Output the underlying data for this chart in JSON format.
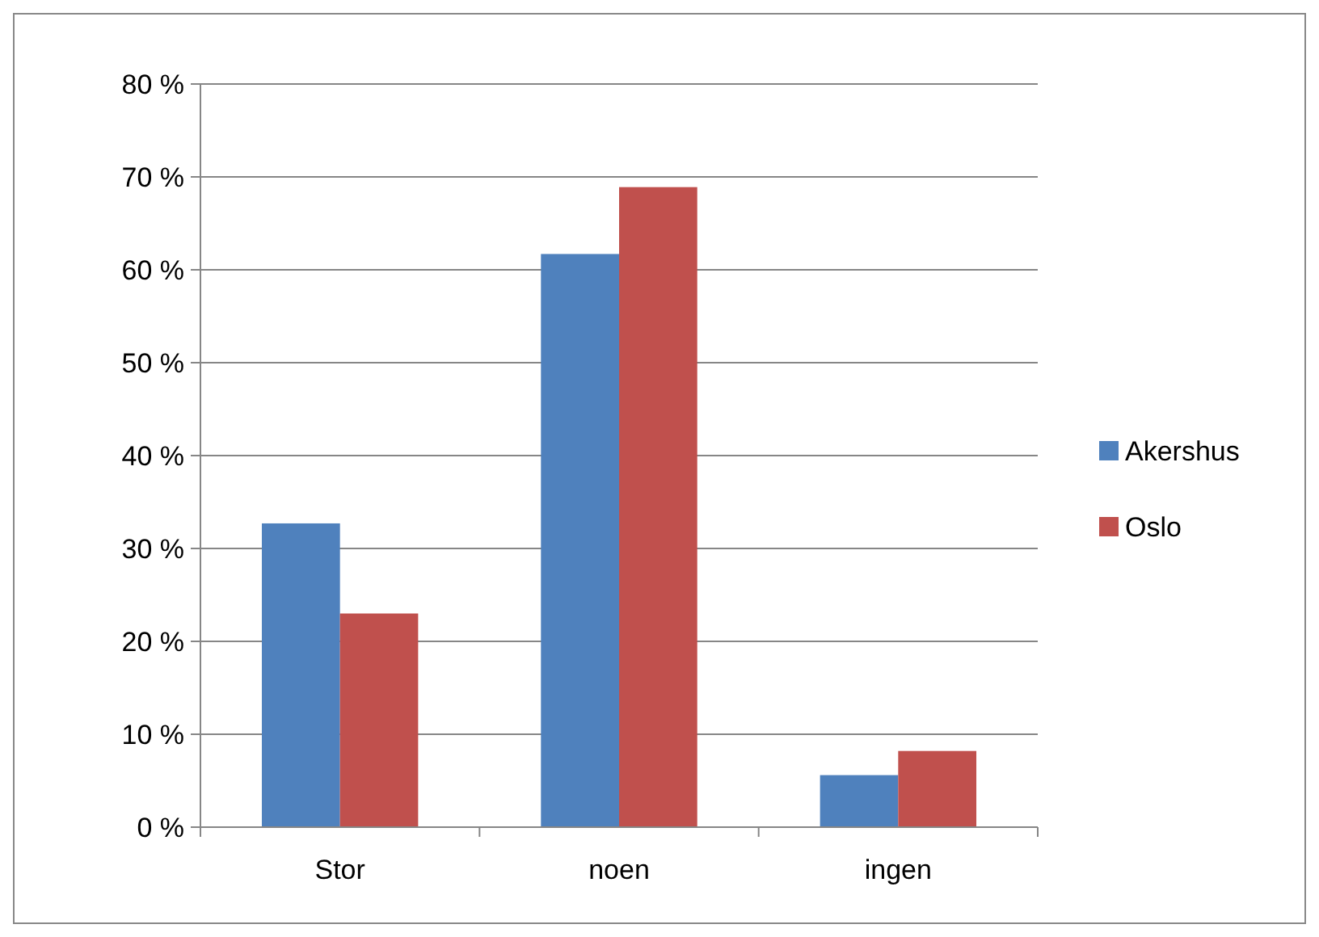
{
  "chart_data": {
    "type": "bar",
    "categories": [
      "Stor",
      "noen",
      "ingen"
    ],
    "series": [
      {
        "name": "Akershus",
        "color": "#4f81bd",
        "values": [
          32.7,
          61.7,
          5.6
        ]
      },
      {
        "name": "Oslo",
        "color": "#c0504d",
        "values": [
          23.0,
          68.9,
          8.2
        ]
      }
    ],
    "ylim": [
      0,
      80
    ],
    "yticks": [
      {
        "value": 0,
        "label": "0 %"
      },
      {
        "value": 10,
        "label": "10 %"
      },
      {
        "value": 20,
        "label": "20 %"
      },
      {
        "value": 30,
        "label": "30 %"
      },
      {
        "value": 40,
        "label": "40 %"
      },
      {
        "value": 50,
        "label": "50 %"
      },
      {
        "value": 60,
        "label": "60 %"
      },
      {
        "value": 70,
        "label": "70 %"
      },
      {
        "value": 80,
        "label": "80 %"
      }
    ],
    "grid": "y",
    "legend": "right"
  }
}
